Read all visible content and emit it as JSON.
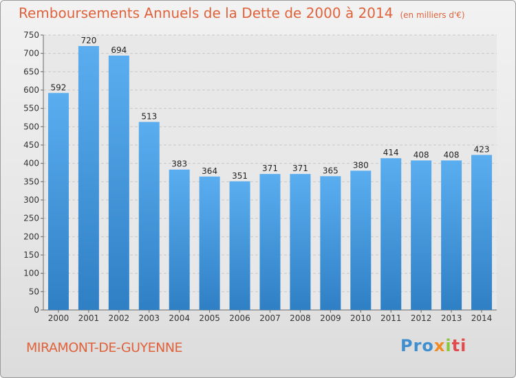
{
  "title": "Remboursements Annuels de la Dette de 2000 à 2014",
  "unit": "(en milliers d'€)",
  "city": "MIRAMONT-DE-GUYENNE",
  "logo": [
    "Pro",
    "x",
    "i",
    "ti"
  ],
  "colors": {
    "bar": "#4a9fe0",
    "title": "#e0623b"
  },
  "chart_data": {
    "type": "bar",
    "categories": [
      "2000",
      "2001",
      "2002",
      "2003",
      "2004",
      "2005",
      "2006",
      "2007",
      "2008",
      "2009",
      "2010",
      "2011",
      "2012",
      "2013",
      "2014"
    ],
    "values": [
      592,
      720,
      694,
      513,
      383,
      364,
      351,
      371,
      371,
      365,
      380,
      414,
      408,
      408,
      423
    ],
    "title": "Remboursements Annuels de la Dette de 2000 à 2014",
    "ylim": [
      0,
      750
    ],
    "yticks": [
      0,
      50,
      100,
      150,
      200,
      250,
      300,
      350,
      400,
      450,
      500,
      550,
      600,
      650,
      700,
      750
    ],
    "grid": true
  }
}
